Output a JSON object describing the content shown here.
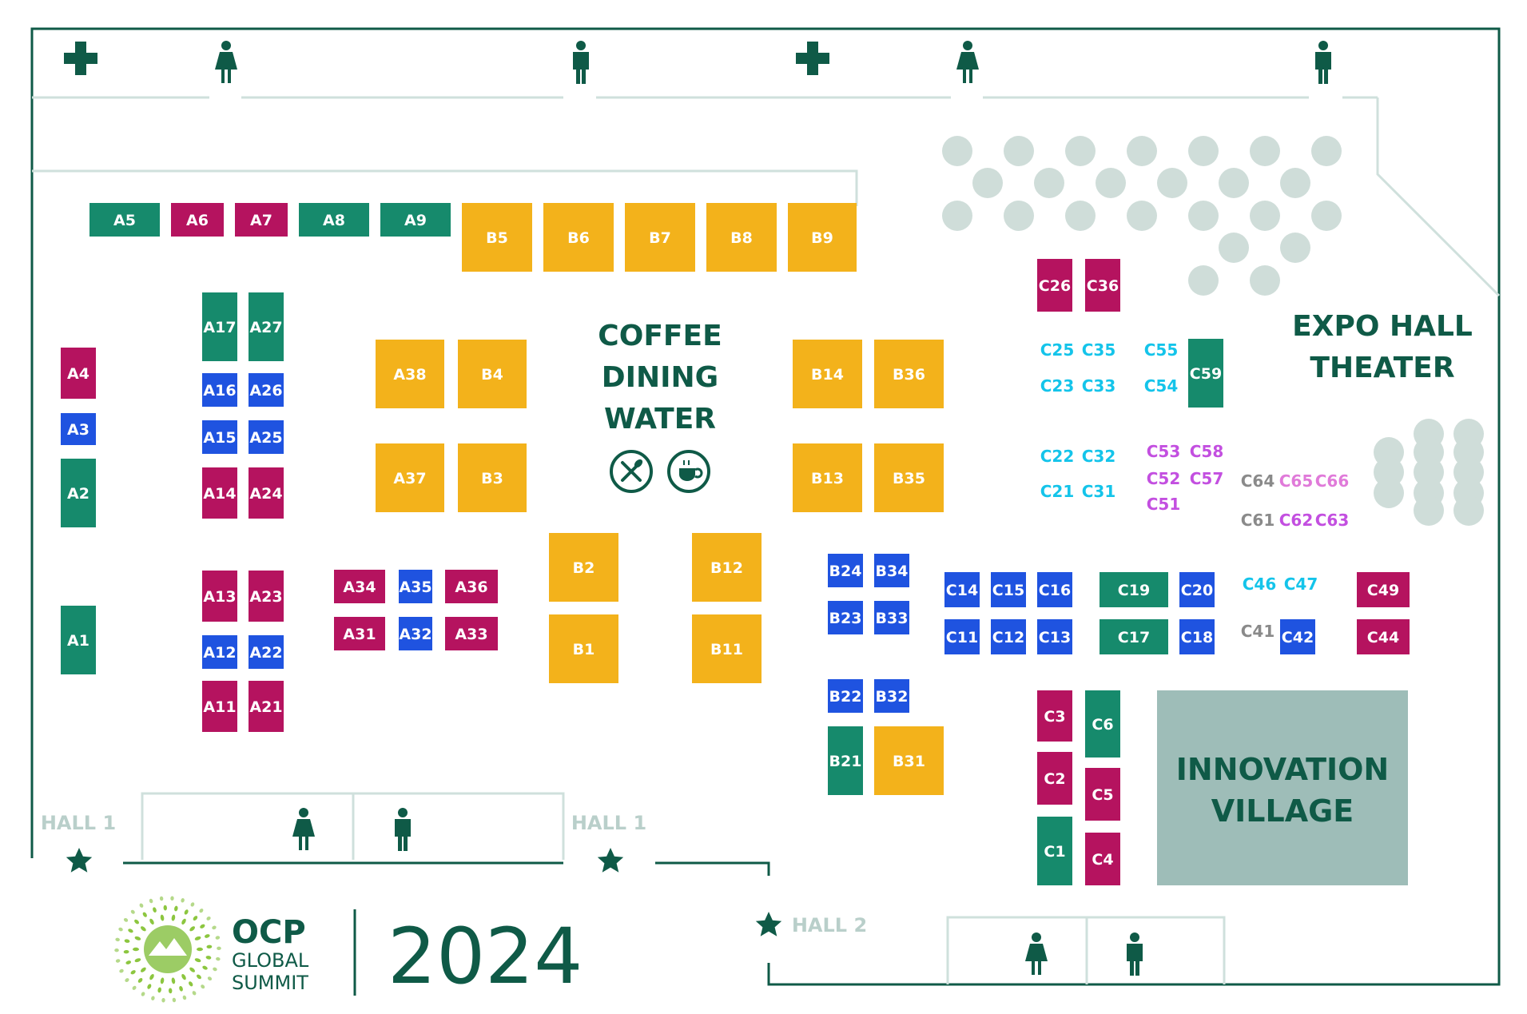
{
  "colors": {
    "teal": "#168a6c",
    "magenta": "#b5135f",
    "blue": "#1f53e0",
    "yellow": "#f3b21b",
    "cyan_text": "#14c4ea",
    "violet_text": "#c34fe0",
    "pink_text": "#e07ad9",
    "gray_text": "#8a8a8a",
    "dark_green": "#0f5a47",
    "light_line": "#cfe0dc",
    "seat": "#cfddd9",
    "village": "#9ebdb8"
  },
  "labels": {
    "coffee": "COFFEE",
    "dining": "DINING",
    "water": "WATER",
    "theater_1": "EXPO HALL",
    "theater_2": "THEATER",
    "village_1": "INNOVATION",
    "village_2": "VILLAGE",
    "hall1_left": "HALL 1",
    "hall1_mid": "HALL 1",
    "hall2": "HALL 2"
  },
  "logo": {
    "ocp": "OCP",
    "global": "GLOBAL",
    "summit": "SUMMIT",
    "year": "2024"
  },
  "amenity_icons": {
    "top": [
      "first-aid-icon",
      "womens-restroom-icon",
      "mens-restroom-icon",
      "first-aid-icon",
      "womens-restroom-icon",
      "mens-restroom-icon"
    ],
    "food": [
      "dining-icon",
      "coffee-cup-icon"
    ],
    "bottom": [
      "womens-restroom-icon",
      "mens-restroom-icon",
      "womens-restroom-icon",
      "mens-restroom-icon"
    ],
    "entrances": [
      "star-icon",
      "star-icon",
      "star-icon"
    ]
  },
  "booths": [
    {
      "id": "A5",
      "color": "teal"
    },
    {
      "id": "A6",
      "color": "magenta"
    },
    {
      "id": "A7",
      "color": "magenta"
    },
    {
      "id": "A8",
      "color": "teal"
    },
    {
      "id": "A9",
      "color": "teal"
    },
    {
      "id": "B5",
      "color": "yellow"
    },
    {
      "id": "B6",
      "color": "yellow"
    },
    {
      "id": "B7",
      "color": "yellow"
    },
    {
      "id": "B8",
      "color": "yellow"
    },
    {
      "id": "B9",
      "color": "yellow"
    },
    {
      "id": "A4",
      "color": "magenta"
    },
    {
      "id": "A3",
      "color": "blue"
    },
    {
      "id": "A2",
      "color": "teal"
    },
    {
      "id": "A1",
      "color": "teal"
    },
    {
      "id": "A17",
      "color": "teal"
    },
    {
      "id": "A27",
      "color": "teal"
    },
    {
      "id": "A16",
      "color": "blue"
    },
    {
      "id": "A26",
      "color": "blue"
    },
    {
      "id": "A15",
      "color": "blue"
    },
    {
      "id": "A25",
      "color": "blue"
    },
    {
      "id": "A14",
      "color": "magenta"
    },
    {
      "id": "A24",
      "color": "magenta"
    },
    {
      "id": "A13",
      "color": "magenta"
    },
    {
      "id": "A23",
      "color": "magenta"
    },
    {
      "id": "A12",
      "color": "blue"
    },
    {
      "id": "A22",
      "color": "blue"
    },
    {
      "id": "A11",
      "color": "magenta"
    },
    {
      "id": "A21",
      "color": "magenta"
    },
    {
      "id": "A38",
      "color": "yellow"
    },
    {
      "id": "B4",
      "color": "yellow"
    },
    {
      "id": "A37",
      "color": "yellow"
    },
    {
      "id": "B3",
      "color": "yellow"
    },
    {
      "id": "A34",
      "color": "magenta"
    },
    {
      "id": "A35",
      "color": "blue"
    },
    {
      "id": "A36",
      "color": "magenta"
    },
    {
      "id": "A31",
      "color": "magenta"
    },
    {
      "id": "A32",
      "color": "blue"
    },
    {
      "id": "A33",
      "color": "magenta"
    },
    {
      "id": "B2",
      "color": "yellow"
    },
    {
      "id": "B1",
      "color": "yellow"
    },
    {
      "id": "B12",
      "color": "yellow"
    },
    {
      "id": "B11",
      "color": "yellow"
    },
    {
      "id": "B14",
      "color": "yellow"
    },
    {
      "id": "B36",
      "color": "yellow"
    },
    {
      "id": "B13",
      "color": "yellow"
    },
    {
      "id": "B35",
      "color": "yellow"
    },
    {
      "id": "B24",
      "color": "blue"
    },
    {
      "id": "B34",
      "color": "blue"
    },
    {
      "id": "B23",
      "color": "blue"
    },
    {
      "id": "B33",
      "color": "blue"
    },
    {
      "id": "B22",
      "color": "blue"
    },
    {
      "id": "B32",
      "color": "blue"
    },
    {
      "id": "B21",
      "color": "teal"
    },
    {
      "id": "B31",
      "color": "yellow"
    },
    {
      "id": "C26",
      "color": "magenta"
    },
    {
      "id": "C36",
      "color": "magenta"
    },
    {
      "id": "C59",
      "color": "teal"
    },
    {
      "id": "C14",
      "color": "blue"
    },
    {
      "id": "C15",
      "color": "blue"
    },
    {
      "id": "C16",
      "color": "blue"
    },
    {
      "id": "C19",
      "color": "teal"
    },
    {
      "id": "C20",
      "color": "blue"
    },
    {
      "id": "C11",
      "color": "blue"
    },
    {
      "id": "C12",
      "color": "blue"
    },
    {
      "id": "C13",
      "color": "blue"
    },
    {
      "id": "C17",
      "color": "teal"
    },
    {
      "id": "C18",
      "color": "blue"
    },
    {
      "id": "C42",
      "color": "blue"
    },
    {
      "id": "C49",
      "color": "magenta"
    },
    {
      "id": "C44",
      "color": "magenta"
    },
    {
      "id": "C3",
      "color": "magenta"
    },
    {
      "id": "C2",
      "color": "magenta"
    },
    {
      "id": "C1",
      "color": "teal"
    },
    {
      "id": "C6",
      "color": "teal"
    },
    {
      "id": "C5",
      "color": "magenta"
    },
    {
      "id": "C4",
      "color": "magenta"
    }
  ],
  "text_booths": [
    {
      "id": "C25",
      "color": "cyan_text"
    },
    {
      "id": "C35",
      "color": "cyan_text"
    },
    {
      "id": "C55",
      "color": "cyan_text"
    },
    {
      "id": "C23",
      "color": "cyan_text"
    },
    {
      "id": "C33",
      "color": "cyan_text"
    },
    {
      "id": "C54",
      "color": "cyan_text"
    },
    {
      "id": "C22",
      "color": "cyan_text"
    },
    {
      "id": "C32",
      "color": "cyan_text"
    },
    {
      "id": "C21",
      "color": "cyan_text"
    },
    {
      "id": "C31",
      "color": "cyan_text"
    },
    {
      "id": "C53",
      "color": "violet_text"
    },
    {
      "id": "C58",
      "color": "violet_text"
    },
    {
      "id": "C52",
      "color": "violet_text"
    },
    {
      "id": "C57",
      "color": "violet_text"
    },
    {
      "id": "C51",
      "color": "violet_text"
    },
    {
      "id": "C64",
      "color": "gray_text"
    },
    {
      "id": "C65",
      "color": "pink_text"
    },
    {
      "id": "C66",
      "color": "pink_text"
    },
    {
      "id": "C61",
      "color": "gray_text"
    },
    {
      "id": "C62",
      "color": "violet_text"
    },
    {
      "id": "C63",
      "color": "violet_text"
    },
    {
      "id": "C46",
      "color": "cyan_text"
    },
    {
      "id": "C47",
      "color": "cyan_text"
    },
    {
      "id": "C41",
      "color": "gray_text"
    }
  ]
}
